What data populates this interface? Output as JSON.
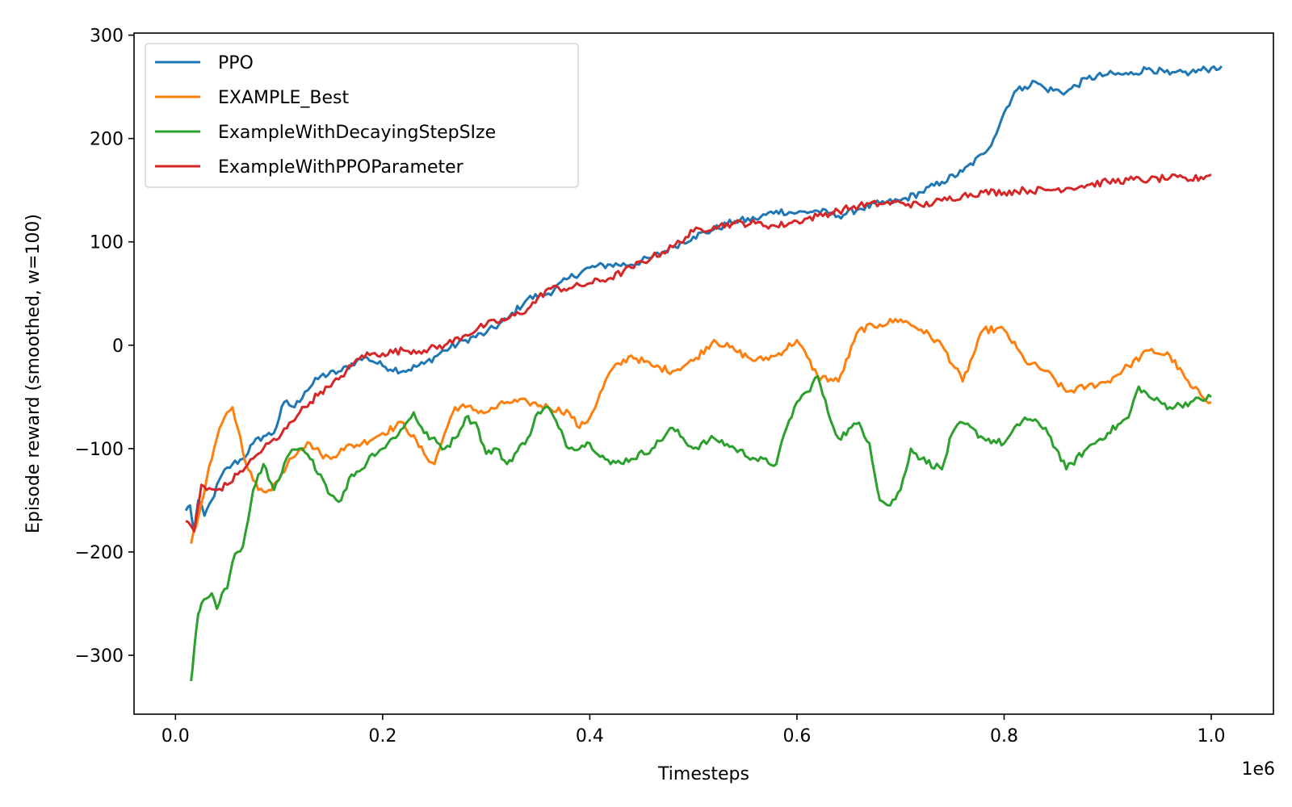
{
  "chart_data": {
    "type": "line",
    "xlabel": "Timesteps",
    "ylabel": "Episode reward (smoothed, w=100)",
    "x_scale_label": "1e6",
    "xlim": [
      -0.04,
      1.06
    ],
    "ylim": [
      -357,
      302
    ],
    "x_ticks": [
      0.0,
      0.2,
      0.4,
      0.6,
      0.8,
      1.0
    ],
    "x_tick_labels": [
      "0.0",
      "0.2",
      "0.4",
      "0.6",
      "0.8",
      "1.0"
    ],
    "y_ticks": [
      300,
      200,
      100,
      0,
      -100,
      -200,
      -300
    ],
    "y_tick_labels": [
      "300",
      "200",
      "100",
      "0",
      "−100",
      "−200",
      "−300"
    ],
    "grid": false,
    "legend_position": "top-left",
    "series": [
      {
        "name": "PPO",
        "color": "#1f77b4",
        "x": [
          0.01,
          0.014,
          0.018,
          0.022,
          0.028,
          0.035,
          0.045,
          0.055,
          0.065,
          0.075,
          0.085,
          0.095,
          0.105,
          0.115,
          0.125,
          0.14,
          0.16,
          0.175,
          0.185,
          0.2,
          0.22,
          0.24,
          0.26,
          0.28,
          0.3,
          0.32,
          0.34,
          0.36,
          0.38,
          0.4,
          0.42,
          0.44,
          0.46,
          0.48,
          0.5,
          0.52,
          0.54,
          0.56,
          0.58,
          0.6,
          0.62,
          0.64,
          0.66,
          0.68,
          0.7,
          0.72,
          0.74,
          0.76,
          0.78,
          0.79,
          0.8,
          0.81,
          0.82,
          0.83,
          0.84,
          0.86,
          0.88,
          0.9,
          0.92,
          0.94,
          0.96,
          0.98,
          1.0,
          1.01
        ],
        "y": [
          -160,
          -155,
          -180,
          -150,
          -165,
          -150,
          -125,
          -115,
          -110,
          -95,
          -88,
          -85,
          -55,
          -60,
          -45,
          -30,
          -25,
          -15,
          -12,
          -20,
          -25,
          -18,
          -5,
          5,
          12,
          25,
          45,
          50,
          65,
          75,
          78,
          78,
          85,
          95,
          105,
          112,
          120,
          122,
          130,
          128,
          130,
          125,
          132,
          137,
          140,
          148,
          158,
          168,
          185,
          200,
          225,
          245,
          250,
          255,
          248,
          245,
          258,
          262,
          262,
          268,
          262,
          264,
          268,
          270
        ]
      },
      {
        "name": "EXAMPLE_Best",
        "color": "#ff7f0e",
        "x": [
          0.015,
          0.02,
          0.03,
          0.04,
          0.05,
          0.055,
          0.06,
          0.07,
          0.08,
          0.09,
          0.1,
          0.11,
          0.12,
          0.13,
          0.14,
          0.15,
          0.16,
          0.18,
          0.2,
          0.22,
          0.24,
          0.25,
          0.26,
          0.27,
          0.28,
          0.3,
          0.32,
          0.34,
          0.36,
          0.38,
          0.39,
          0.4,
          0.42,
          0.44,
          0.46,
          0.48,
          0.5,
          0.52,
          0.54,
          0.56,
          0.58,
          0.6,
          0.62,
          0.64,
          0.66,
          0.68,
          0.7,
          0.72,
          0.74,
          0.76,
          0.78,
          0.8,
          0.82,
          0.84,
          0.86,
          0.88,
          0.9,
          0.92,
          0.94,
          0.96,
          0.98,
          1.0
        ],
        "y": [
          -192,
          -175,
          -130,
          -90,
          -65,
          -60,
          -80,
          -120,
          -140,
          -140,
          -130,
          -110,
          -100,
          -95,
          -105,
          -110,
          -100,
          -95,
          -85,
          -75,
          -105,
          -115,
          -85,
          -60,
          -60,
          -65,
          -55,
          -55,
          -60,
          -65,
          -80,
          -70,
          -25,
          -10,
          -20,
          -25,
          -15,
          5,
          -5,
          -15,
          -10,
          5,
          -30,
          -35,
          15,
          20,
          25,
          15,
          0,
          -35,
          15,
          15,
          -15,
          -25,
          -45,
          -40,
          -35,
          -20,
          -5,
          -10,
          -40,
          -55
        ]
      },
      {
        "name": "ExampleWithDecayingStepSIze",
        "color": "#2ca02c",
        "x": [
          0.015,
          0.018,
          0.022,
          0.025,
          0.03,
          0.035,
          0.04,
          0.045,
          0.05,
          0.055,
          0.06,
          0.065,
          0.07,
          0.075,
          0.08,
          0.085,
          0.09,
          0.095,
          0.1,
          0.11,
          0.12,
          0.13,
          0.14,
          0.15,
          0.16,
          0.17,
          0.18,
          0.19,
          0.2,
          0.22,
          0.23,
          0.24,
          0.26,
          0.27,
          0.28,
          0.29,
          0.3,
          0.31,
          0.32,
          0.34,
          0.35,
          0.36,
          0.37,
          0.38,
          0.4,
          0.42,
          0.44,
          0.46,
          0.48,
          0.5,
          0.52,
          0.54,
          0.56,
          0.58,
          0.59,
          0.6,
          0.61,
          0.62,
          0.63,
          0.64,
          0.66,
          0.67,
          0.68,
          0.69,
          0.7,
          0.71,
          0.72,
          0.74,
          0.75,
          0.76,
          0.78,
          0.8,
          0.82,
          0.84,
          0.85,
          0.86,
          0.88,
          0.9,
          0.92,
          0.93,
          0.94,
          0.96,
          0.98,
          1.0
        ],
        "y": [
          -325,
          -295,
          -260,
          -250,
          -245,
          -240,
          -255,
          -240,
          -235,
          -210,
          -200,
          -195,
          -170,
          -140,
          -125,
          -115,
          -130,
          -140,
          -130,
          -105,
          -100,
          -110,
          -125,
          -145,
          -150,
          -125,
          -120,
          -105,
          -100,
          -80,
          -65,
          -85,
          -100,
          -90,
          -70,
          -75,
          -105,
          -100,
          -115,
          -90,
          -65,
          -60,
          -80,
          -100,
          -95,
          -115,
          -110,
          -100,
          -80,
          -100,
          -90,
          -100,
          -110,
          -115,
          -80,
          -55,
          -45,
          -30,
          -65,
          -90,
          -75,
          -95,
          -150,
          -155,
          -140,
          -100,
          -110,
          -120,
          -85,
          -75,
          -90,
          -95,
          -70,
          -80,
          -100,
          -120,
          -100,
          -85,
          -70,
          -40,
          -50,
          -60,
          -55,
          -50
        ]
      },
      {
        "name": "ExampleWithPPOParameter",
        "color": "#d62728",
        "x": [
          0.01,
          0.015,
          0.018,
          0.022,
          0.025,
          0.03,
          0.04,
          0.05,
          0.06,
          0.07,
          0.08,
          0.09,
          0.1,
          0.11,
          0.12,
          0.13,
          0.14,
          0.15,
          0.16,
          0.17,
          0.18,
          0.2,
          0.22,
          0.24,
          0.26,
          0.28,
          0.3,
          0.32,
          0.34,
          0.36,
          0.38,
          0.4,
          0.42,
          0.44,
          0.46,
          0.48,
          0.5,
          0.52,
          0.54,
          0.56,
          0.58,
          0.6,
          0.62,
          0.64,
          0.66,
          0.68,
          0.7,
          0.72,
          0.74,
          0.76,
          0.78,
          0.8,
          0.82,
          0.84,
          0.86,
          0.88,
          0.9,
          0.92,
          0.94,
          0.96,
          0.98,
          1.0
        ],
        "y": [
          -170,
          -175,
          -180,
          -155,
          -135,
          -140,
          -140,
          -135,
          -125,
          -115,
          -105,
          -95,
          -90,
          -75,
          -65,
          -55,
          -45,
          -40,
          -30,
          -20,
          -10,
          -8,
          -5,
          -5,
          0,
          10,
          20,
          25,
          35,
          55,
          55,
          60,
          65,
          75,
          85,
          95,
          110,
          115,
          118,
          118,
          115,
          120,
          125,
          130,
          135,
          137,
          138,
          135,
          140,
          145,
          148,
          148,
          150,
          150,
          152,
          155,
          158,
          160,
          160,
          162,
          160,
          165
        ]
      }
    ]
  }
}
